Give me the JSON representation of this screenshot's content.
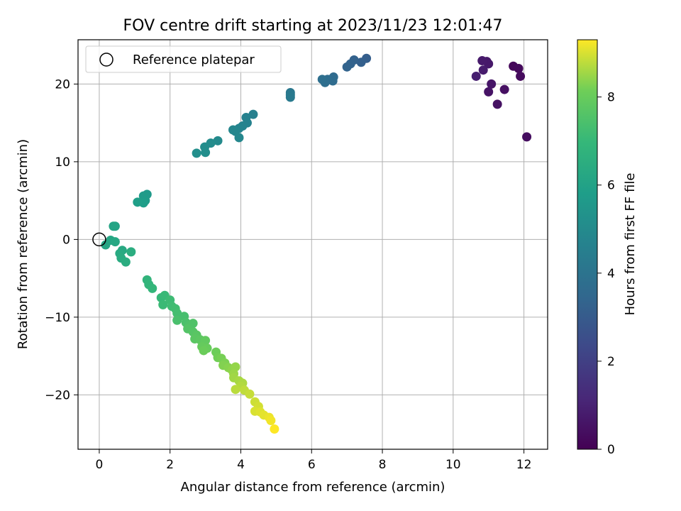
{
  "chart_data": {
    "type": "scatter",
    "title": "FOV centre drift starting at 2023/11/23 12:01:47",
    "xlabel": "Angular distance from reference (arcmin)",
    "ylabel": "Rotation from reference (arcmin)",
    "xlim": [
      -0.6,
      12.67
    ],
    "ylim": [
      -27.0,
      25.7
    ],
    "xticks": [
      0,
      2,
      4,
      6,
      8,
      10,
      12
    ],
    "yticks": [
      -20,
      -10,
      0,
      10,
      20
    ],
    "grid": true,
    "legend": {
      "placement": "top-left",
      "entries": [
        "Reference platepar"
      ]
    },
    "reference_point": {
      "x": 0,
      "y": 0
    },
    "colorbar": {
      "label": "Hours from first FF file",
      "colormap": "viridis",
      "range": [
        0,
        9.3
      ],
      "ticks": [
        0,
        2,
        4,
        6,
        8
      ]
    },
    "points": [
      {
        "x": 11.7,
        "y": 22.3,
        "c": 0.2
      },
      {
        "x": 11.85,
        "y": 22.0,
        "c": 0.25
      },
      {
        "x": 11.9,
        "y": 21.0,
        "c": 0.3
      },
      {
        "x": 12.08,
        "y": 13.2,
        "c": 0.35
      },
      {
        "x": 11.45,
        "y": 19.3,
        "c": 0.45
      },
      {
        "x": 11.25,
        "y": 17.4,
        "c": 0.5
      },
      {
        "x": 11.0,
        "y": 19.0,
        "c": 0.55
      },
      {
        "x": 11.08,
        "y": 20.0,
        "c": 0.6
      },
      {
        "x": 10.95,
        "y": 22.9,
        "c": 0.65
      },
      {
        "x": 11.0,
        "y": 22.6,
        "c": 0.7
      },
      {
        "x": 10.82,
        "y": 23.0,
        "c": 0.75
      },
      {
        "x": 10.85,
        "y": 21.8,
        "c": 0.8
      },
      {
        "x": 10.65,
        "y": 21.0,
        "c": 0.9
      },
      {
        "x": 7.55,
        "y": 23.3,
        "c": 3.1
      },
      {
        "x": 7.4,
        "y": 22.8,
        "c": 3.2
      },
      {
        "x": 7.2,
        "y": 23.1,
        "c": 3.25
      },
      {
        "x": 7.1,
        "y": 22.6,
        "c": 3.3
      },
      {
        "x": 7.0,
        "y": 22.2,
        "c": 3.35
      },
      {
        "x": 6.62,
        "y": 20.9,
        "c": 3.6
      },
      {
        "x": 6.6,
        "y": 20.4,
        "c": 3.65
      },
      {
        "x": 6.45,
        "y": 20.6,
        "c": 3.7
      },
      {
        "x": 6.38,
        "y": 20.2,
        "c": 3.75
      },
      {
        "x": 6.3,
        "y": 20.6,
        "c": 3.8
      },
      {
        "x": 5.4,
        "y": 18.9,
        "c": 4.2
      },
      {
        "x": 5.4,
        "y": 18.6,
        "c": 4.25
      },
      {
        "x": 5.4,
        "y": 18.3,
        "c": 4.3
      },
      {
        "x": 4.35,
        "y": 16.1,
        "c": 4.55
      },
      {
        "x": 4.15,
        "y": 15.7,
        "c": 4.6
      },
      {
        "x": 4.18,
        "y": 15.0,
        "c": 4.65
      },
      {
        "x": 4.05,
        "y": 14.6,
        "c": 4.7
      },
      {
        "x": 3.95,
        "y": 14.3,
        "c": 4.75
      },
      {
        "x": 3.85,
        "y": 13.9,
        "c": 4.8
      },
      {
        "x": 3.78,
        "y": 14.1,
        "c": 4.82
      },
      {
        "x": 3.95,
        "y": 13.1,
        "c": 4.85
      },
      {
        "x": 3.35,
        "y": 12.7,
        "c": 5.0
      },
      {
        "x": 3.15,
        "y": 12.4,
        "c": 5.05
      },
      {
        "x": 2.98,
        "y": 11.9,
        "c": 5.1
      },
      {
        "x": 3.0,
        "y": 11.2,
        "c": 5.15
      },
      {
        "x": 2.75,
        "y": 11.1,
        "c": 5.2
      },
      {
        "x": 1.35,
        "y": 5.8,
        "c": 5.65
      },
      {
        "x": 1.25,
        "y": 5.6,
        "c": 5.7
      },
      {
        "x": 1.3,
        "y": 5.0,
        "c": 5.75
      },
      {
        "x": 1.25,
        "y": 4.7,
        "c": 5.8
      },
      {
        "x": 1.08,
        "y": 4.8,
        "c": 5.85
      },
      {
        "x": 0.45,
        "y": 1.7,
        "c": 6.05
      },
      {
        "x": 0.4,
        "y": 1.7,
        "c": 6.1
      },
      {
        "x": 0.18,
        "y": -0.7,
        "c": 6.15
      },
      {
        "x": 0.32,
        "y": -0.1,
        "c": 6.2
      },
      {
        "x": 0.45,
        "y": -0.3,
        "c": 6.25
      },
      {
        "x": 0.65,
        "y": -1.4,
        "c": 6.3
      },
      {
        "x": 0.58,
        "y": -1.8,
        "c": 6.35
      },
      {
        "x": 0.62,
        "y": -2.4,
        "c": 6.4
      },
      {
        "x": 0.75,
        "y": -2.9,
        "c": 6.45
      },
      {
        "x": 0.9,
        "y": -1.6,
        "c": 6.5
      },
      {
        "x": 1.35,
        "y": -5.2,
        "c": 6.8
      },
      {
        "x": 1.4,
        "y": -5.8,
        "c": 6.85
      },
      {
        "x": 1.5,
        "y": -6.3,
        "c": 6.9
      },
      {
        "x": 1.75,
        "y": -7.5,
        "c": 7.0
      },
      {
        "x": 1.85,
        "y": -7.2,
        "c": 7.05
      },
      {
        "x": 1.8,
        "y": -8.4,
        "c": 7.1
      },
      {
        "x": 2.0,
        "y": -7.8,
        "c": 7.15
      },
      {
        "x": 2.05,
        "y": -8.6,
        "c": 7.2
      },
      {
        "x": 2.15,
        "y": -8.9,
        "c": 7.25
      },
      {
        "x": 2.2,
        "y": -9.5,
        "c": 7.3
      },
      {
        "x": 2.4,
        "y": -9.9,
        "c": 7.35
      },
      {
        "x": 2.2,
        "y": -10.4,
        "c": 7.4
      },
      {
        "x": 2.45,
        "y": -10.7,
        "c": 7.45
      },
      {
        "x": 2.55,
        "y": -11.0,
        "c": 7.5
      },
      {
        "x": 2.65,
        "y": -10.8,
        "c": 7.55
      },
      {
        "x": 2.5,
        "y": -11.5,
        "c": 7.6
      },
      {
        "x": 2.65,
        "y": -11.9,
        "c": 7.65
      },
      {
        "x": 2.75,
        "y": -12.3,
        "c": 7.7
      },
      {
        "x": 2.7,
        "y": -12.8,
        "c": 7.75
      },
      {
        "x": 2.85,
        "y": -12.9,
        "c": 7.8
      },
      {
        "x": 2.95,
        "y": -13.4,
        "c": 7.85
      },
      {
        "x": 3.0,
        "y": -13.0,
        "c": 7.9
      },
      {
        "x": 2.9,
        "y": -13.8,
        "c": 7.95
      },
      {
        "x": 3.05,
        "y": -14.0,
        "c": 8.0
      },
      {
        "x": 2.95,
        "y": -14.3,
        "c": 8.05
      },
      {
        "x": 3.3,
        "y": -14.5,
        "c": 8.1
      },
      {
        "x": 3.35,
        "y": -15.2,
        "c": 8.15
      },
      {
        "x": 3.45,
        "y": -15.3,
        "c": 8.2
      },
      {
        "x": 3.55,
        "y": -15.9,
        "c": 8.25
      },
      {
        "x": 3.5,
        "y": -16.2,
        "c": 8.3
      },
      {
        "x": 3.65,
        "y": -16.5,
        "c": 8.35
      },
      {
        "x": 3.75,
        "y": -16.8,
        "c": 8.4
      },
      {
        "x": 3.85,
        "y": -16.4,
        "c": 8.45
      },
      {
        "x": 3.8,
        "y": -17.3,
        "c": 8.5
      },
      {
        "x": 3.8,
        "y": -17.8,
        "c": 8.55
      },
      {
        "x": 3.95,
        "y": -18.2,
        "c": 8.6
      },
      {
        "x": 4.05,
        "y": -18.5,
        "c": 8.65
      },
      {
        "x": 4.0,
        "y": -18.9,
        "c": 8.7
      },
      {
        "x": 3.85,
        "y": -19.3,
        "c": 8.75
      },
      {
        "x": 4.1,
        "y": -19.4,
        "c": 8.8
      },
      {
        "x": 4.25,
        "y": -19.9,
        "c": 8.85
      },
      {
        "x": 4.4,
        "y": -20.9,
        "c": 8.9
      },
      {
        "x": 4.5,
        "y": -21.5,
        "c": 8.95
      },
      {
        "x": 4.4,
        "y": -22.1,
        "c": 9.0
      },
      {
        "x": 4.55,
        "y": -22.2,
        "c": 9.05
      },
      {
        "x": 4.65,
        "y": -22.6,
        "c": 9.1
      },
      {
        "x": 4.8,
        "y": -22.9,
        "c": 9.15
      },
      {
        "x": 4.85,
        "y": -23.3,
        "c": 9.2
      },
      {
        "x": 4.95,
        "y": -24.4,
        "c": 9.3
      }
    ]
  }
}
